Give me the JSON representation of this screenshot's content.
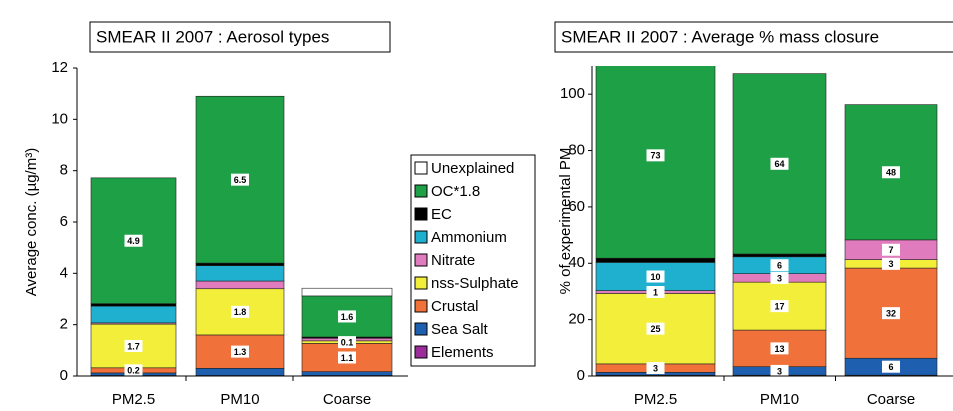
{
  "chart_data": [
    {
      "type": "stacked_bar",
      "title": "SMEAR II 2007 : Aerosol types",
      "y_label": "Average conc. (µg/m³)",
      "categories": [
        "PM2.5",
        "PM10",
        "Coarse"
      ],
      "ylim": [
        0,
        12
      ],
      "yticks": [
        0,
        2,
        4,
        6,
        8,
        10,
        12
      ],
      "legend": "right",
      "series": [
        {
          "name": "Elements",
          "color": "#9b2d9b",
          "values": [
            0.02,
            0.02,
            0.02
          ],
          "value_labels": [
            null,
            null,
            null
          ]
        },
        {
          "name": "Sea Salt",
          "color": "#1f5fb0",
          "values": [
            0.1,
            0.28,
            0.15
          ],
          "value_labels": [
            null,
            null,
            null
          ]
        },
        {
          "name": "Crustal",
          "color": "#f0713a",
          "values": [
            0.2,
            1.3,
            1.1
          ],
          "value_labels": [
            "0.2",
            "1.3",
            "1.1"
          ]
        },
        {
          "name": "nss-Sulphate",
          "color": "#f2ee3a",
          "values": [
            1.7,
            1.8,
            0.1
          ],
          "value_labels": [
            "1.7",
            "1.8",
            "0.1"
          ]
        },
        {
          "name": "Nitrate",
          "color": "#e07bbd",
          "values": [
            0.05,
            0.3,
            0.1
          ],
          "value_labels": [
            null,
            null,
            null
          ]
        },
        {
          "name": "Ammonium",
          "color": "#1fb0cf",
          "values": [
            0.65,
            0.6,
            0
          ],
          "value_labels": [
            null,
            null,
            null
          ]
        },
        {
          "name": "EC",
          "color": "#000000",
          "values": [
            0.1,
            0.1,
            0.05
          ],
          "value_labels": [
            null,
            null,
            null
          ]
        },
        {
          "name": "OC*1.8",
          "color": "#1ea046",
          "values": [
            4.9,
            6.5,
            1.6
          ],
          "value_labels": [
            "4.9",
            "6.5",
            "1.6"
          ]
        },
        {
          "name": "Unexplained",
          "color": "#ffffff",
          "values": [
            0,
            0,
            0.3
          ],
          "value_labels": [
            null,
            null,
            null
          ]
        }
      ]
    },
    {
      "type": "stacked_bar",
      "title": "SMEAR II 2007 : Average % mass closure",
      "y_label": "% of experimental PM",
      "categories": [
        "PM2.5",
        "PM10",
        "Coarse"
      ],
      "ylim": [
        0,
        110
      ],
      "yticks": [
        0,
        20,
        40,
        60,
        80,
        100
      ],
      "series": [
        {
          "color": "#9b2d9b",
          "values": [
            0.3,
            0.3,
            0.3
          ],
          "value_labels": [
            null,
            null,
            null
          ]
        },
        {
          "color": "#1f5fb0",
          "values": [
            1,
            3,
            6
          ],
          "value_labels": [
            null,
            "3",
            "6"
          ]
        },
        {
          "color": "#f0713a",
          "values": [
            3,
            13,
            32
          ],
          "value_labels": [
            "3",
            "13",
            "32"
          ]
        },
        {
          "color": "#f2ee3a",
          "values": [
            25,
            17,
            3
          ],
          "value_labels": [
            "25",
            "17",
            "3"
          ]
        },
        {
          "color": "#e07bbd",
          "values": [
            1,
            3,
            7
          ],
          "value_labels": [
            "1",
            "3",
            "7"
          ]
        },
        {
          "color": "#1fb0cf",
          "values": [
            10,
            6,
            0
          ],
          "value_labels": [
            "10",
            "6",
            null
          ]
        },
        {
          "color": "#000000",
          "values": [
            1.5,
            1,
            0
          ],
          "value_labels": [
            null,
            null,
            null
          ]
        },
        {
          "color": "#1ea046",
          "values": [
            73,
            64,
            48
          ],
          "value_labels": [
            "73",
            "64",
            "48"
          ]
        }
      ]
    }
  ]
}
